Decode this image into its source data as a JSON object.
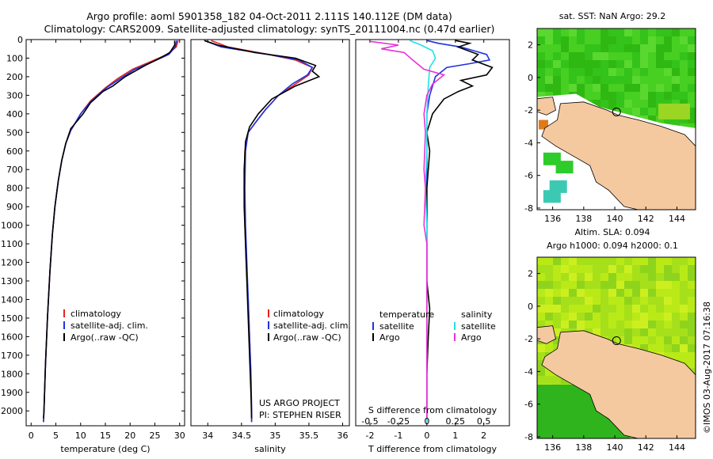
{
  "header": {
    "line1": "Argo profile: aoml 5901358_182 04-Oct-2011 2.111S 140.112E (DM data)",
    "line2": "Climatology: CARS2009. Satellite-adjusted climatology: synTS_20111004.nc (0.47d earlier)"
  },
  "colors": {
    "climatology": "#e8211c",
    "satellite": "#1f32e0",
    "argo": "#000000",
    "sat_salinity": "#22e0ea",
    "argo_salinity": "#e632d7",
    "land": "#f5c9a0"
  },
  "chart_data": [
    {
      "type": "line",
      "id": "temperature",
      "xlabel": "temperature (deg C)",
      "ylabel": "",
      "xlim": [
        -1,
        31
      ],
      "ylim": [
        2080,
        0
      ],
      "xticks": [
        0,
        5,
        10,
        15,
        20,
        25,
        30
      ],
      "yticks": [
        0,
        100,
        200,
        300,
        400,
        500,
        600,
        700,
        800,
        900,
        1000,
        1100,
        1200,
        1300,
        1400,
        1500,
        1600,
        1700,
        1800,
        1900,
        2000
      ],
      "legend": [
        "climatology",
        "satellite-adj. clim.",
        "Argo(..raw -QC)"
      ],
      "series": [
        {
          "name": "climatology",
          "color": "#e8211c",
          "points": [
            [
              29.7,
              5
            ],
            [
              29.3,
              40
            ],
            [
              27.5,
              80
            ],
            [
              24,
              120
            ],
            [
              20.5,
              160
            ],
            [
              17.5,
              210
            ],
            [
              15,
              260
            ],
            [
              12,
              330
            ],
            [
              10,
              400
            ],
            [
              8,
              490
            ],
            [
              7,
              560
            ],
            [
              6.2,
              650
            ],
            [
              5.5,
              760
            ],
            [
              4.8,
              900
            ],
            [
              4.3,
              1050
            ],
            [
              3.8,
              1250
            ],
            [
              3.3,
              1500
            ],
            [
              2.9,
              1750
            ],
            [
              2.6,
              2000
            ],
            [
              2.5,
              2060
            ]
          ]
        },
        {
          "name": "satellite-adj. clim.",
          "color": "#1f32e0",
          "points": [
            [
              29.4,
              5
            ],
            [
              29.1,
              40
            ],
            [
              27.8,
              80
            ],
            [
              24.5,
              120
            ],
            [
              21,
              160
            ],
            [
              18,
              210
            ],
            [
              15.2,
              260
            ],
            [
              12.2,
              330
            ],
            [
              10,
              400
            ],
            [
              8,
              490
            ],
            [
              7,
              560
            ],
            [
              6.2,
              650
            ],
            [
              5.5,
              760
            ],
            [
              4.8,
              900
            ],
            [
              4.3,
              1050
            ],
            [
              3.8,
              1250
            ],
            [
              3.3,
              1500
            ],
            [
              2.9,
              1750
            ],
            [
              2.6,
              2000
            ],
            [
              2.5,
              2060
            ]
          ]
        },
        {
          "name": "Argo(..raw -QC)",
          "color": "#000000",
          "points": [
            [
              29,
              5
            ],
            [
              29,
              30
            ],
            [
              28,
              70
            ],
            [
              26,
              100
            ],
            [
              23,
              140
            ],
            [
              19,
              200
            ],
            [
              16.5,
              250
            ],
            [
              14.5,
              280
            ],
            [
              12,
              340
            ],
            [
              10.5,
              400
            ],
            [
              8,
              480
            ],
            [
              7,
              560
            ],
            [
              6.2,
              650
            ],
            [
              5.5,
              760
            ],
            [
              4.8,
              900
            ],
            [
              4.3,
              1050
            ],
            [
              3.8,
              1250
            ],
            [
              3.3,
              1500
            ],
            [
              2.9,
              1750
            ],
            [
              2.6,
              2000
            ],
            [
              2.5,
              2040
            ]
          ]
        }
      ]
    },
    {
      "type": "line",
      "id": "salinity",
      "xlabel": "salinity",
      "xlim": [
        33.75,
        36.1
      ],
      "ylim": [
        2080,
        0
      ],
      "xticks": [
        34,
        34.5,
        35,
        35.5,
        36
      ],
      "legend": [
        "climatology",
        "satellite-adj. clim.",
        "Argo(..raw -QC)"
      ],
      "annotation": [
        "US ARGO PROJECT",
        "PI: STEPHEN RISER"
      ],
      "series": [
        {
          "name": "climatology",
          "color": "#e8211c",
          "points": [
            [
              34.05,
              5
            ],
            [
              34.3,
              40
            ],
            [
              34.9,
              80
            ],
            [
              35.3,
              110
            ],
            [
              35.55,
              150
            ],
            [
              35.5,
              190
            ],
            [
              35.3,
              240
            ],
            [
              35.05,
              300
            ],
            [
              34.85,
              380
            ],
            [
              34.7,
              450
            ],
            [
              34.6,
              500
            ],
            [
              34.55,
              600
            ],
            [
              34.54,
              800
            ],
            [
              34.55,
              1000
            ],
            [
              34.57,
              1200
            ],
            [
              34.6,
              1400
            ],
            [
              34.62,
              1600
            ],
            [
              34.64,
              1800
            ],
            [
              34.65,
              2000
            ],
            [
              34.65,
              2060
            ]
          ]
        },
        {
          "name": "satellite-adj. clim.",
          "color": "#1f32e0",
          "points": [
            [
              33.95,
              5
            ],
            [
              34.2,
              40
            ],
            [
              34.9,
              80
            ],
            [
              35.35,
              110
            ],
            [
              35.55,
              150
            ],
            [
              35.48,
              190
            ],
            [
              35.25,
              240
            ],
            [
              35.05,
              300
            ],
            [
              34.85,
              380
            ],
            [
              34.7,
              450
            ],
            [
              34.6,
              500
            ],
            [
              34.56,
              600
            ],
            [
              34.55,
              800
            ],
            [
              34.56,
              1000
            ],
            [
              34.58,
              1200
            ],
            [
              34.6,
              1400
            ],
            [
              34.62,
              1600
            ],
            [
              34.64,
              1800
            ],
            [
              34.65,
              2000
            ],
            [
              34.65,
              2060
            ]
          ]
        },
        {
          "name": "Argo(..raw -QC)",
          "color": "#000000",
          "points": [
            [
              33.95,
              5
            ],
            [
              34.15,
              30
            ],
            [
              34.7,
              70
            ],
            [
              35.3,
              100
            ],
            [
              35.6,
              140
            ],
            [
              35.55,
              170
            ],
            [
              35.65,
              200
            ],
            [
              35.3,
              250
            ],
            [
              34.95,
              320
            ],
            [
              34.75,
              400
            ],
            [
              34.62,
              470
            ],
            [
              34.56,
              550
            ],
            [
              34.54,
              700
            ],
            [
              34.54,
              900
            ],
            [
              34.56,
              1100
            ],
            [
              34.58,
              1300
            ],
            [
              34.6,
              1500
            ],
            [
              34.62,
              1700
            ],
            [
              34.64,
              1900
            ],
            [
              34.65,
              2040
            ]
          ]
        }
      ]
    },
    {
      "type": "line",
      "id": "difference",
      "xlabel": "T difference from climatology",
      "xlabel_top": "S difference from climatology",
      "xlim": [
        -2.5,
        2.9
      ],
      "ylim": [
        2080,
        0
      ],
      "xticks": [
        -2,
        -1,
        0,
        1,
        2
      ],
      "xticks_top": [
        {
          "v": -2,
          "label": "-0.5"
        },
        {
          "v": -1,
          "label": "-0.25"
        },
        {
          "v": 0,
          "label": "0"
        },
        {
          "v": 1,
          "label": "0.25"
        },
        {
          "v": 2,
          "label": "0.5"
        }
      ],
      "legend_t_title": "temperature",
      "legend_s_title": "salinity",
      "legend_t": [
        "satellite",
        "Argo"
      ],
      "legend_s": [
        "satellite",
        "Argo"
      ],
      "series": [
        {
          "name": "T satellite",
          "color": "#1f32e0",
          "points": [
            [
              0,
              5
            ],
            [
              0.4,
              20
            ],
            [
              1.2,
              40
            ],
            [
              2.1,
              80
            ],
            [
              2.2,
              110
            ],
            [
              1.5,
              130
            ],
            [
              0.7,
              150
            ],
            [
              0.3,
              200
            ],
            [
              0.1,
              300
            ],
            [
              0,
              400
            ],
            [
              0,
              600
            ],
            [
              0,
              800
            ],
            [
              0,
              1000
            ],
            [
              0,
              1200
            ],
            [
              0,
              1400
            ],
            [
              0,
              1600
            ],
            [
              0,
              1800
            ],
            [
              0,
              2000
            ],
            [
              0,
              2060
            ]
          ]
        },
        {
          "name": "T Argo",
          "color": "#000000",
          "points": [
            [
              1,
              5
            ],
            [
              1.5,
              20
            ],
            [
              1.1,
              40
            ],
            [
              1.8,
              80
            ],
            [
              1.6,
              110
            ],
            [
              2.3,
              150
            ],
            [
              2.1,
              190
            ],
            [
              1.2,
              220
            ],
            [
              1.6,
              250
            ],
            [
              1.1,
              280
            ],
            [
              0.6,
              320
            ],
            [
              0.2,
              400
            ],
            [
              0,
              500
            ],
            [
              0.1,
              600
            ],
            [
              0,
              800
            ],
            [
              0,
              1000
            ],
            [
              0,
              1300
            ],
            [
              0.1,
              1450
            ],
            [
              0.05,
              1600
            ],
            [
              0,
              1800
            ],
            [
              0,
              2000
            ],
            [
              0,
              2040
            ]
          ]
        },
        {
          "name": "S satellite",
          "color": "#22e0ea",
          "points": [
            [
              -0.6,
              5
            ],
            [
              -0.2,
              30
            ],
            [
              0.2,
              60
            ],
            [
              0.3,
              100
            ],
            [
              0.1,
              150
            ],
            [
              0.05,
              250
            ],
            [
              0,
              400
            ],
            [
              0,
              600
            ],
            [
              -0.05,
              800
            ],
            [
              0,
              1000
            ],
            [
              0,
              1200
            ],
            [
              0,
              1500
            ],
            [
              0,
              1800
            ],
            [
              0,
              2060
            ]
          ]
        },
        {
          "name": "S Argo",
          "color": "#e632d7",
          "points": [
            [
              -2,
              10
            ],
            [
              -1,
              30
            ],
            [
              -1.6,
              50
            ],
            [
              -0.8,
              70
            ],
            [
              -0.5,
              110
            ],
            [
              -0.1,
              160
            ],
            [
              0.6,
              190
            ],
            [
              0.2,
              240
            ],
            [
              0,
              300
            ],
            [
              -0.1,
              400
            ],
            [
              -0.05,
              500
            ],
            [
              -0.1,
              700
            ],
            [
              -0.05,
              800
            ],
            [
              -0.1,
              1000
            ],
            [
              0,
              1100
            ],
            [
              0,
              1300
            ],
            [
              0,
              1500
            ],
            [
              0,
              1800
            ],
            [
              0,
              2040
            ]
          ]
        }
      ]
    },
    {
      "type": "heatmap",
      "id": "sst_map",
      "title": "sat. SST: NaN Argo: 29.2",
      "xlim": [
        135,
        145.2
      ],
      "ylim": [
        -8.1,
        3
      ],
      "xticks": [
        136,
        138,
        140,
        142,
        144
      ],
      "yticks": [
        2,
        0,
        -2,
        -4,
        -6,
        -8
      ],
      "marker": {
        "lon": 140.112,
        "lat": -2.111
      }
    },
    {
      "type": "heatmap",
      "id": "sla_map",
      "title": "Altim. SLA: 0.094",
      "subtitle": "Argo h1000: 0.094 h2000: 0.1",
      "xlim": [
        135,
        145.2
      ],
      "ylim": [
        -8.1,
        3
      ],
      "xticks": [
        136,
        138,
        140,
        142,
        144
      ],
      "yticks": [
        2,
        0,
        -2,
        -4,
        -6,
        -8
      ],
      "marker": {
        "lon": 140.112,
        "lat": -2.111
      }
    }
  ],
  "footer": {
    "credit": "©IMOS 03-Aug-2017 07:16:38"
  }
}
